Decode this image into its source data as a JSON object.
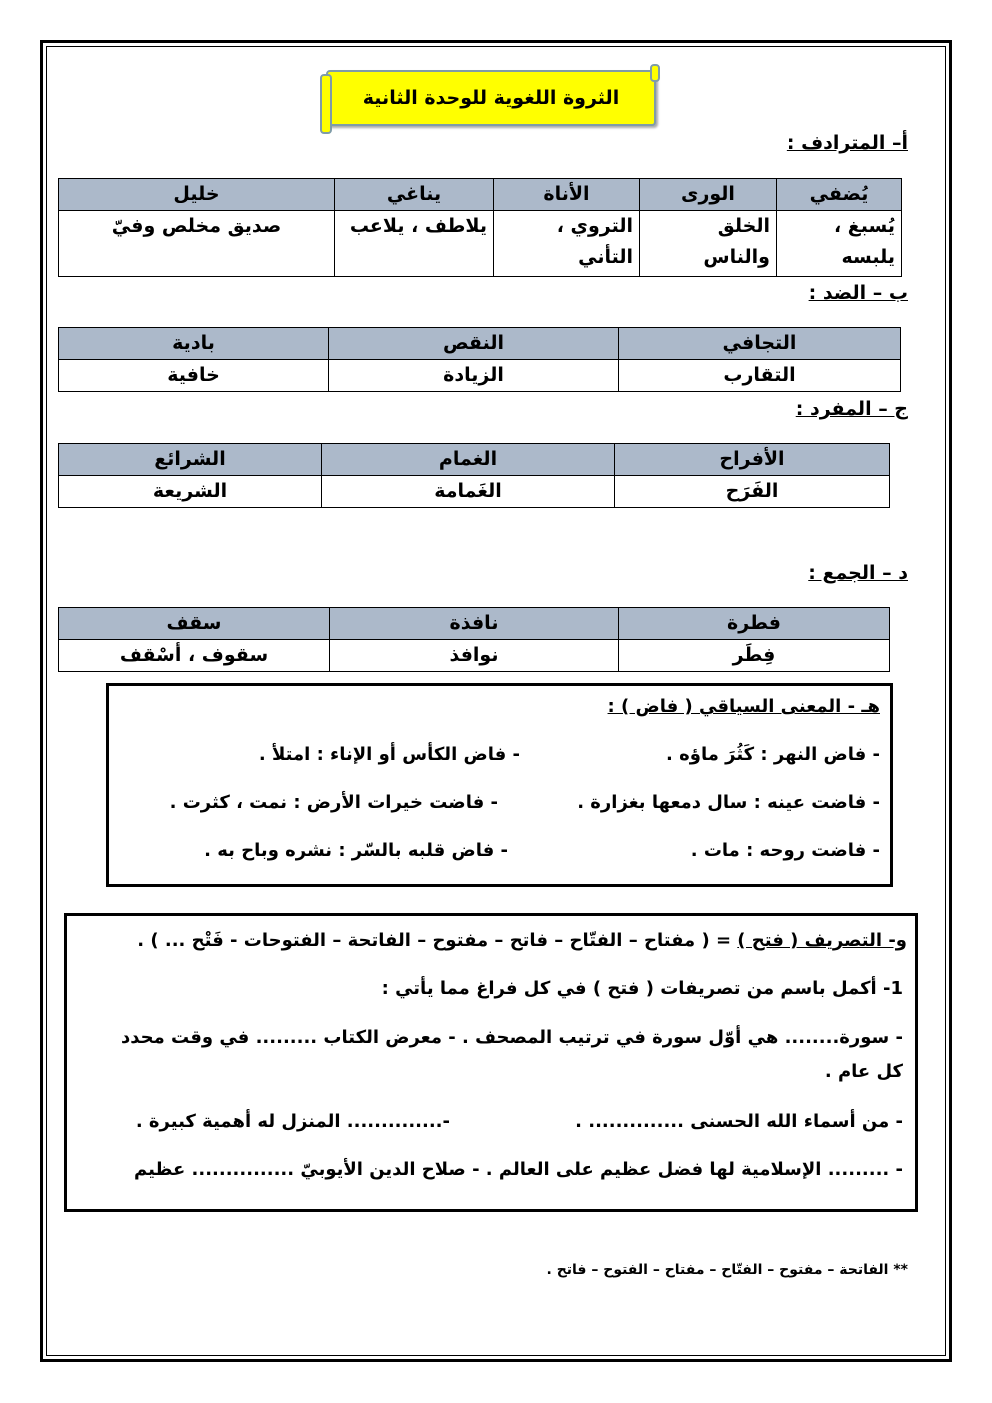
{
  "title": "الثروة اللغوية للوحدة الثانية",
  "synonyms": {
    "heading": "أ– المترادف :",
    "headers": [
      "يُضفي",
      "الورى",
      "الأناة",
      "يناغي",
      "خليل"
    ],
    "values": [
      "يُسبغ ، يلبسه",
      "الخلق والناس",
      "التروي ، التأني",
      "يلاطف ، يلاعب",
      "صديق مخلص وفيّ"
    ]
  },
  "antonyms": {
    "heading": "ب – الضد :",
    "headers": [
      "التجافي",
      "النقص",
      "بادية"
    ],
    "values": [
      "التقارب",
      "الزيادة",
      "خافية"
    ]
  },
  "singular": {
    "heading": "ج – المفرد :",
    "headers": [
      "الأفراح",
      "الغمام",
      "الشرائع"
    ],
    "values": [
      "الفَرَح",
      "الغَمامة",
      "الشريعة"
    ]
  },
  "plural": {
    "heading": "د – الجمع :",
    "headers": [
      "فطرة",
      "نافذة",
      "سقف"
    ],
    "values": [
      "فِطَر",
      "نوافذ",
      "سقوف ، أسْقف"
    ]
  },
  "context": {
    "heading": "هـ - المعنى السياقي ( فاض ) :",
    "items": [
      "- فاض النهر : كَثُرَ ماؤه .",
      "- فاض الكأس أو الإناء : امتلأ .",
      "- فاضت عينه : سال دمعها بغزارة .",
      "- فاضت خيرات الأرض : نمت ، كثرت .",
      "- فاضت روحه : مات .",
      "- فاض قلبه بالسّر : نشره وباح به ."
    ]
  },
  "derivation": {
    "label": "و- التصريف ( فتح )",
    "rest": " = ( مفتاح – الفتّاح – فاتح – مفتوح – الفاتحة – الفتوحات  - فَتْح ... ) .",
    "question": "1- أكمل باسم من تصريفات ( فتح ) في كل فراغ مما يأتي :",
    "lines": [
      "- سورة........ هي أوّل سورة في ترتيب المصحف .    - معرض الكتاب ......... في وقت محدد",
      "كل عام .",
      "- من أسماء الله الحسنى .............. .",
      "-.............. المنزل له أهمية كبيرة .",
      "- ......... الإسلامية لها فضل عظيم على العالم .   - صلاح الدين الأيوبيّ ............... عظيم"
    ]
  },
  "answers": "** الفاتحة – مفتوح – الفتّاح – مفتاح – الفتوح – فاتح ."
}
